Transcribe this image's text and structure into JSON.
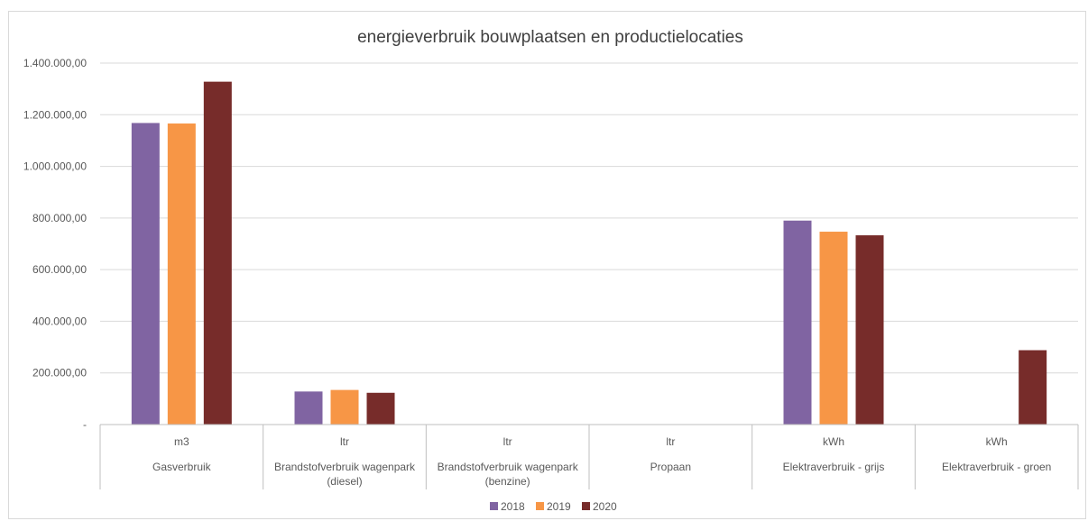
{
  "chart_data": {
    "type": "bar",
    "title": "energieverbruik bouwplaatsen en productielocaties",
    "ylim": [
      0,
      1400000
    ],
    "yticks": [
      {
        "value": 0,
        "label": "-"
      },
      {
        "value": 200000,
        "label": "200.000,00"
      },
      {
        "value": 400000,
        "label": "400.000,00"
      },
      {
        "value": 600000,
        "label": "600.000,00"
      },
      {
        "value": 800000,
        "label": "800.000,00"
      },
      {
        "value": 1000000,
        "label": "1.000.000,00"
      },
      {
        "value": 1200000,
        "label": "1.200.000,00"
      },
      {
        "value": 1400000,
        "label": "1.400.000,00"
      }
    ],
    "grid": true,
    "legend_position": "bottom",
    "categories": [
      {
        "unit": "m3",
        "label": [
          "Gasverbruik"
        ]
      },
      {
        "unit": "ltr",
        "label": [
          "Brandstofverbruik wagenpark",
          "(diesel)"
        ]
      },
      {
        "unit": "ltr",
        "label": [
          "Brandstofverbruik wagenpark",
          "(benzine)"
        ]
      },
      {
        "unit": "ltr",
        "label": [
          "Propaan"
        ]
      },
      {
        "unit": "kWh",
        "label": [
          "Elektraverbruik - grijs"
        ]
      },
      {
        "unit": "kWh",
        "label": [
          "Elektraverbruik - groen"
        ]
      }
    ],
    "series": [
      {
        "name": "2018",
        "color": "#8064a2",
        "values": [
          1168000,
          128000,
          0,
          0,
          790000,
          0
        ]
      },
      {
        "name": "2019",
        "color": "#f79646",
        "values": [
          1166000,
          134000,
          0,
          0,
          747000,
          0
        ]
      },
      {
        "name": "2020",
        "color": "#772c2a",
        "values": [
          1328000,
          123000,
          0,
          0,
          733000,
          288000
        ]
      }
    ]
  }
}
